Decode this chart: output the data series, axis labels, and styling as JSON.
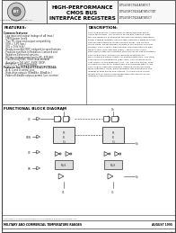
{
  "bg_color": "#f8f8f8",
  "border_color": "#444444",
  "header": {
    "logo_text": "Integrated Device Technology, Inc.",
    "title_line1": "HIGH-PERFORMANCE",
    "title_line2": "CMOS BUS",
    "title_line3": "INTERFACE REGISTERS",
    "part_numbers": "IDT54/74FCT841AT/BT/CT\nIDT54/74FCT8241AT/BT/CT/DT\nIDT54/74FCT8244AT/BT/CT"
  },
  "features_title": "FEATURES:",
  "features": [
    "Common features:",
    " - Low input and output leakage of uA (max.)",
    " - CMOS power levels",
    " - True TTL input and output compatibility:",
    "   VOH = 3.3V (typ.)",
    "   VOL = 0.0V (typ.)",
    " - Ready-to-accept (RDY) endpoint to specifications",
    " - Products available in Radiation-1 assured and",
    "   Radiation-Enhanced versions",
    " - Military product compliant to MIL-STD-883,",
    "   Class B and JEDEC listed (dual marked)",
    " - Available in DIP, SOIC, SSOP, QSOP,",
    "   LCC/PLCC, and LQ packages",
    "Features for FCT841/FCT8241/FCT8244:",
    " - A, B, C and D control pins",
    " - High-drive outputs (64mA/bn, 48mA bn.)",
    " - Power off disable outputs permit 'live insertion'"
  ],
  "description_title": "DESCRIPTION:",
  "description_lines": [
    "The FCT84x series is built using an advanced dual-metal",
    "CMOS technology. The FCT8241 series bus interface regis-",
    "ters are designed to eliminate the extra packages required to",
    "buffer existing registers and provides extensive width to select",
    "address data paths on buses carrying parity. The FCT841",
    "series Quad, 3D-bit storage consists of the popular FCT244F",
    "function. The FCT8241 eight-bit wide buffered registers with",
    "three hi-side (OE0 and OE4 /OE8) -- ideal for ports bus",
    "interfaces in high-performance microprocessor-based systems.",
    "The FCT84x also features synchronous reset/set func-",
    "tions, making it easily usable for multiplexing (OE1, OE2,OE3)",
    "asynchronous multiplexing (OE1, OE2, OE3) receives multi-",
    "user control at the interfaces, e.g., CE, OE4 and SR/MR. They",
    "are ideal for use as an output port and requiring high-to-low.",
    "The FCT8241 high-performance interface family can drive",
    "large capacitive loads, while providing low-capacitance bus",
    "loading at both inputs and outputs. All inputs have clamp",
    "diodes and all outputs and designation has asynchronous",
    "loading in high-impedance state."
  ],
  "functional_title": "FUNCTIONAL BLOCK DIAGRAM",
  "footer_left": "MILITARY AND COMMERCIAL TEMPERATURE RANGES",
  "footer_right": "AUGUST 1995",
  "main_bg": "#ffffff",
  "text_color": "#222222",
  "diagram_color": "#333333"
}
